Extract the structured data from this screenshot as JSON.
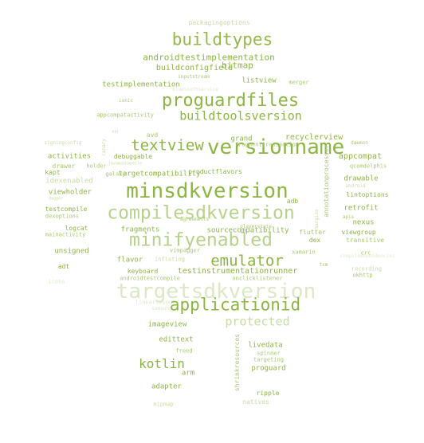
{
  "word_cloud": {
    "words": [
      "packagingoptions",
      "buildtypes",
      "androidtestimplementation",
      "bitmap",
      "buildconfigfield",
      "inputstream",
      "listview",
      "merger",
      "testimplementation",
      "bluetoothservice",
      "proguardfiles",
      "ionic",
      "appcompatactivity",
      "buildtoolsversion",
      "ear",
      "textview",
      "versionname",
      "recyclerview",
      "grand",
      "fragmenttransaction",
      "signingconfig",
      "canary",
      "avd",
      "daemon",
      "debuggable",
      "javamashapeile",
      "activities",
      "holder",
      "targetcompatibility",
      "productflavors",
      "appcompat",
      "qcomdelphis",
      "drawer",
      "kapt",
      "galaxy",
      "idexenabled",
      "minsdkversion",
      "annotationprocessor",
      "drawable",
      "android",
      "lintoptions",
      "dagger",
      "adb",
      "viewholder",
      "compilesdkversion",
      "retrofit",
      "testcompile",
      "dexoptions",
      "logcat",
      "sourcecompatibility",
      "nexus",
      "apis",
      "mainactivity",
      "fragments",
      "minifyenabled",
      "flutter",
      "dex",
      "viewgroup",
      "transitive",
      "unsigned",
      "vimpagger",
      "crc",
      "flavor",
      "xamarin",
      "emulator",
      "inflating",
      "compiledependencies",
      "keyboard",
      "adt",
      "testinstrumentationrunner",
      "tcm",
      "recording",
      "okhttp",
      "icons",
      "androidtestcompile",
      "onclicklistener",
      "targetsdkversion",
      "linearlayout",
      "samsung",
      "applicationid",
      "protected",
      "imageview",
      "edittext",
      "freed",
      "livedata",
      "kotlin",
      "shrinkresources",
      "spinner",
      "targeting",
      "arm",
      "proguard",
      "adapter",
      "ripple",
      "natives",
      "mipmap",
      "playerstate",
      "agreements",
      "margins"
    ],
    "colors": {
      "dark": "#8db542",
      "mid": "#a8c870",
      "light": "#c8dca5",
      "pale": "#dbe8c6",
      "faint": "#e8f0dc"
    }
  }
}
